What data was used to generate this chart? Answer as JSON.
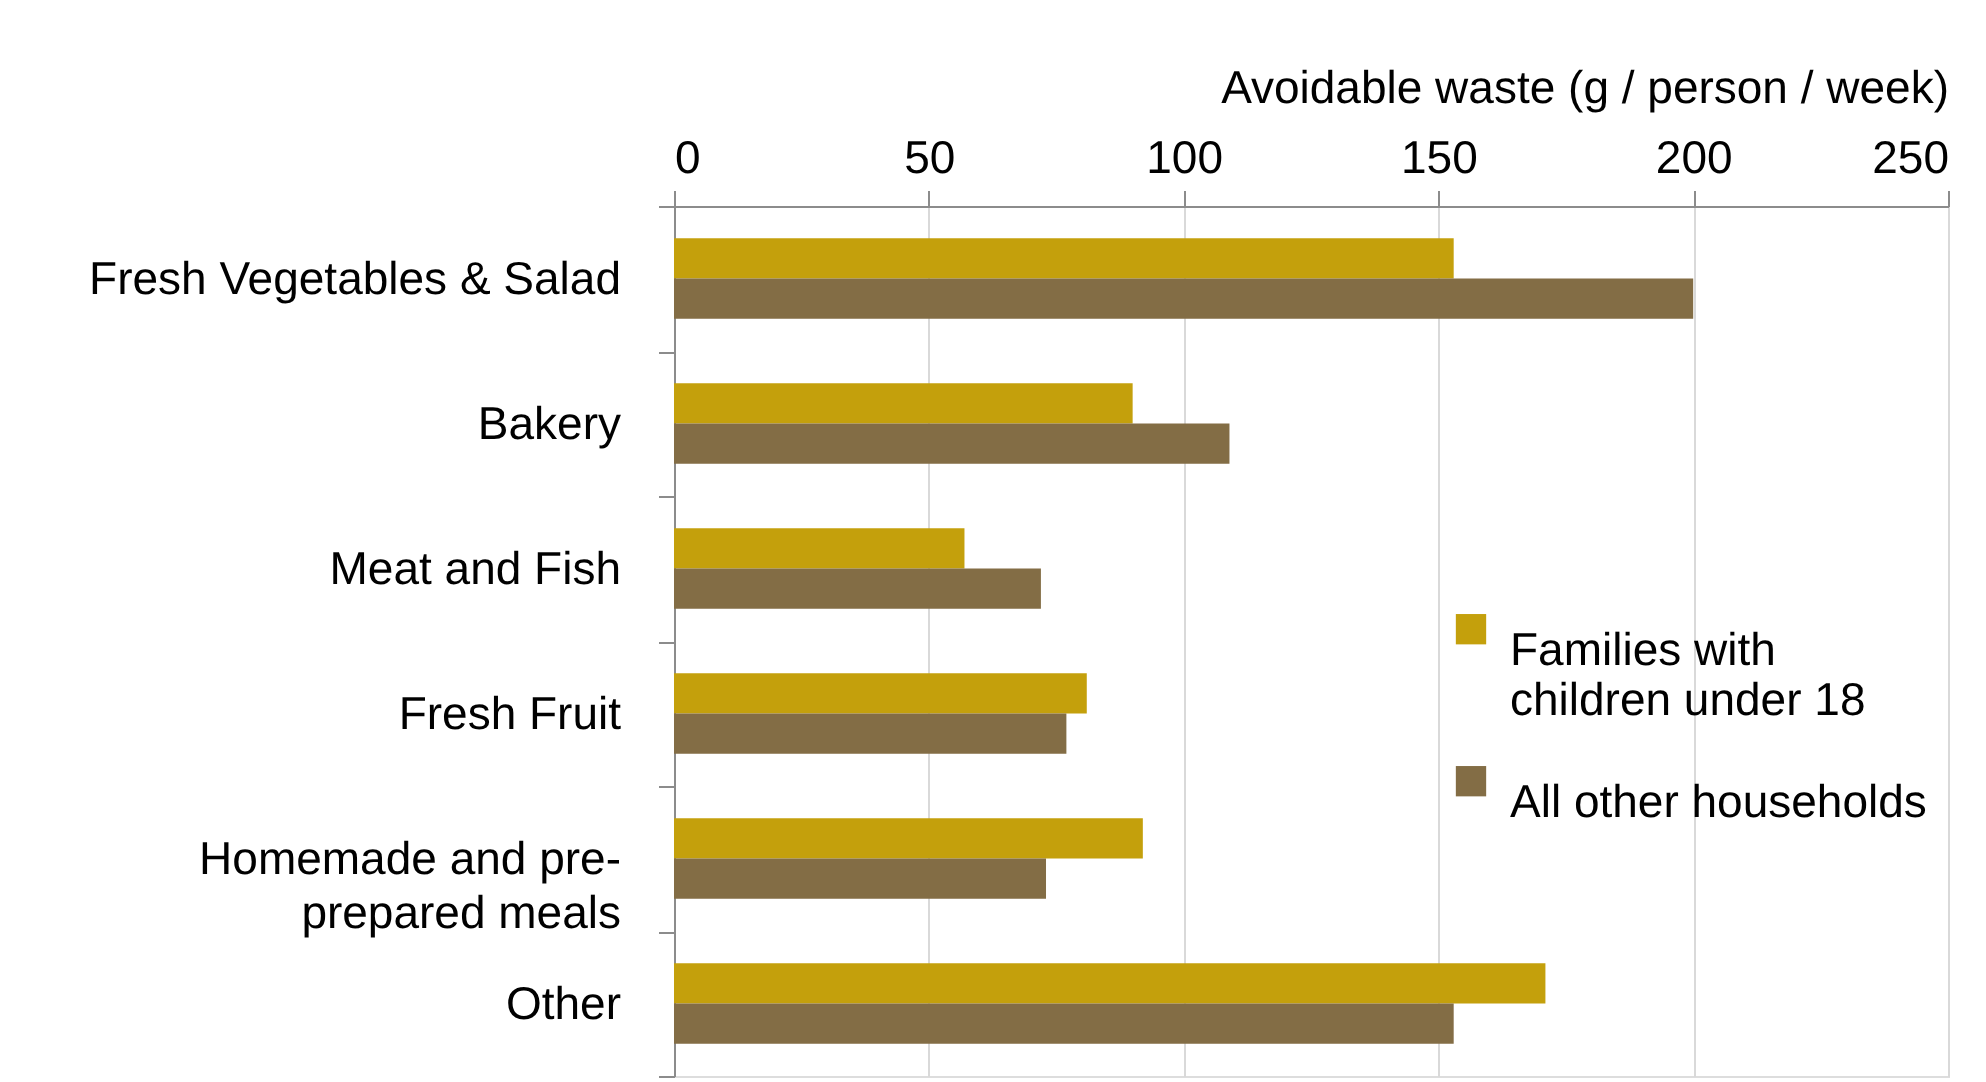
{
  "chart_data": {
    "type": "bar",
    "orientation": "horizontal",
    "xlabel": "Avoidable waste (g / person / week)",
    "categories": [
      "Fresh Vegetables & Salad",
      "Bakery",
      "Meat and Fish",
      "Fresh Fruit",
      "Homemade and pre-prepared meals",
      "Other"
    ],
    "series": [
      {
        "name": "Families with children under 18",
        "color": "#c4a00c",
        "values": [
          153,
          90,
          57,
          81,
          92,
          171
        ]
      },
      {
        "name": "All other households",
        "color": "#836d45",
        "values": [
          200,
          109,
          72,
          77,
          73,
          153
        ]
      }
    ],
    "xlim": [
      0,
      250
    ],
    "xticks": [
      0,
      50,
      100,
      150,
      200,
      250
    ],
    "grid": "x",
    "legend": "right"
  }
}
